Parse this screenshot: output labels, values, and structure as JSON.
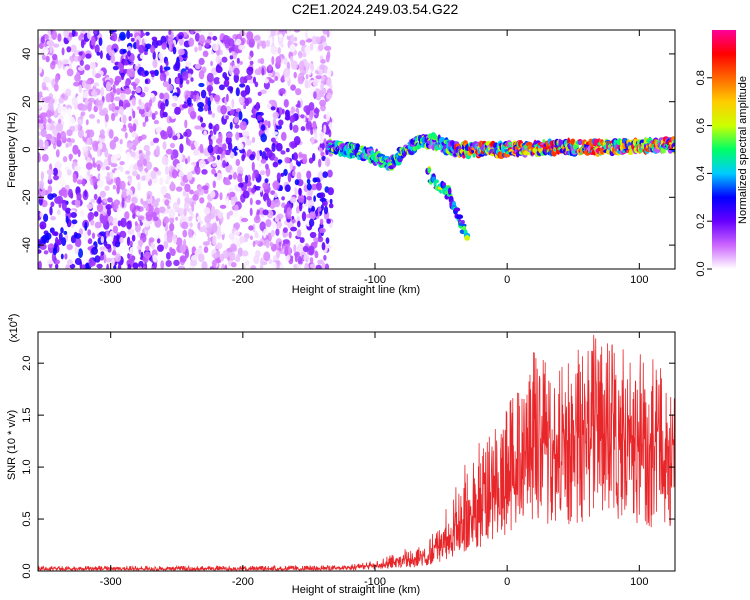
{
  "title": "C2E1.2024.249.03.54.G22",
  "chart_data": [
    {
      "type": "heatmap",
      "xlabel": "Height of straight line (km)",
      "ylabel": "Frequency (Hz)",
      "xlim": [
        -355,
        127
      ],
      "ylim": [
        -50,
        50
      ],
      "xticks": [
        -300,
        -200,
        -100,
        0,
        100
      ],
      "yticks": [
        -40,
        -20,
        0,
        20,
        40
      ],
      "colorbar": {
        "label": "Normalized spectral amplitude",
        "range": [
          0.0,
          1.0
        ],
        "ticks": [
          "0.0",
          "0.2",
          "0.4",
          "0.6",
          "0.8"
        ],
        "colors": [
          "#ffffff",
          "#cc66ff",
          "#6600ff",
          "#0000ff",
          "#00ccff",
          "#00ff66",
          "#ccff00",
          "#ffcc00",
          "#ff6600",
          "#ff0000",
          "#ff0099"
        ]
      },
      "features": [
        {
          "name": "noise region",
          "x_range": [
            -355,
            -133
          ],
          "y_range": [
            -50,
            50
          ],
          "amplitude": 0.15
        },
        {
          "name": "signal track",
          "points": [
            [
              -135,
              1
            ],
            [
              -120,
              0
            ],
            [
              -100,
              -3
            ],
            [
              -90,
              -6
            ],
            [
              -80,
              -2
            ],
            [
              -70,
              2
            ],
            [
              -60,
              4
            ],
            [
              -50,
              2
            ],
            [
              -40,
              0
            ],
            [
              -20,
              0
            ],
            [
              0,
              0
            ],
            [
              40,
              1
            ],
            [
              80,
              1
            ],
            [
              127,
              2
            ]
          ],
          "amplitude": 0.8
        },
        {
          "name": "branch",
          "points": [
            [
              -60,
              -10
            ],
            [
              -45,
              -18
            ],
            [
              -35,
              -30
            ],
            [
              -30,
              -38
            ]
          ],
          "amplitude": 0.4
        }
      ]
    },
    {
      "type": "line",
      "xlabel": "Height of straight line (km)",
      "ylabel": "SNR (10 * v/v)",
      "multiplier": "(x10",
      "multiplier_exp": "4",
      "multiplier_close": ")",
      "xlim": [
        -355,
        127
      ],
      "ylim": [
        0,
        2.3
      ],
      "xticks": [
        -300,
        -200,
        -100,
        0,
        100
      ],
      "yticks": [
        "0.0",
        "0.5",
        "1.0",
        "1.5",
        "2.0"
      ],
      "series": [
        {
          "color": "#e8262a",
          "envelope": {
            "x": [
              -355,
              -250,
              -150,
              -120,
              -100,
              -80,
              -70,
              -60,
              -50,
              -40,
              -30,
              -20,
              -10,
              0,
              10,
              20,
              30,
              40,
              50,
              60,
              70,
              80,
              90,
              100,
              110,
              127
            ],
            "mean": [
              0.02,
              0.02,
              0.02,
              0.03,
              0.05,
              0.1,
              0.1,
              0.15,
              0.25,
              0.4,
              0.5,
              0.65,
              0.8,
              0.95,
              1.1,
              1.2,
              1.25,
              1.25,
              1.3,
              1.35,
              1.3,
              1.3,
              1.25,
              1.25,
              1.2,
              1.2
            ],
            "max": [
              0.05,
              0.05,
              0.05,
              0.06,
              0.1,
              0.2,
              0.25,
              0.3,
              0.5,
              0.8,
              1.1,
              1.25,
              1.4,
              1.6,
              1.9,
              2.15,
              2.05,
              2.1,
              2.2,
              2.3,
              2.25,
              2.2,
              2.15,
              2.1,
              2.1,
              1.7
            ]
          }
        }
      ]
    }
  ]
}
